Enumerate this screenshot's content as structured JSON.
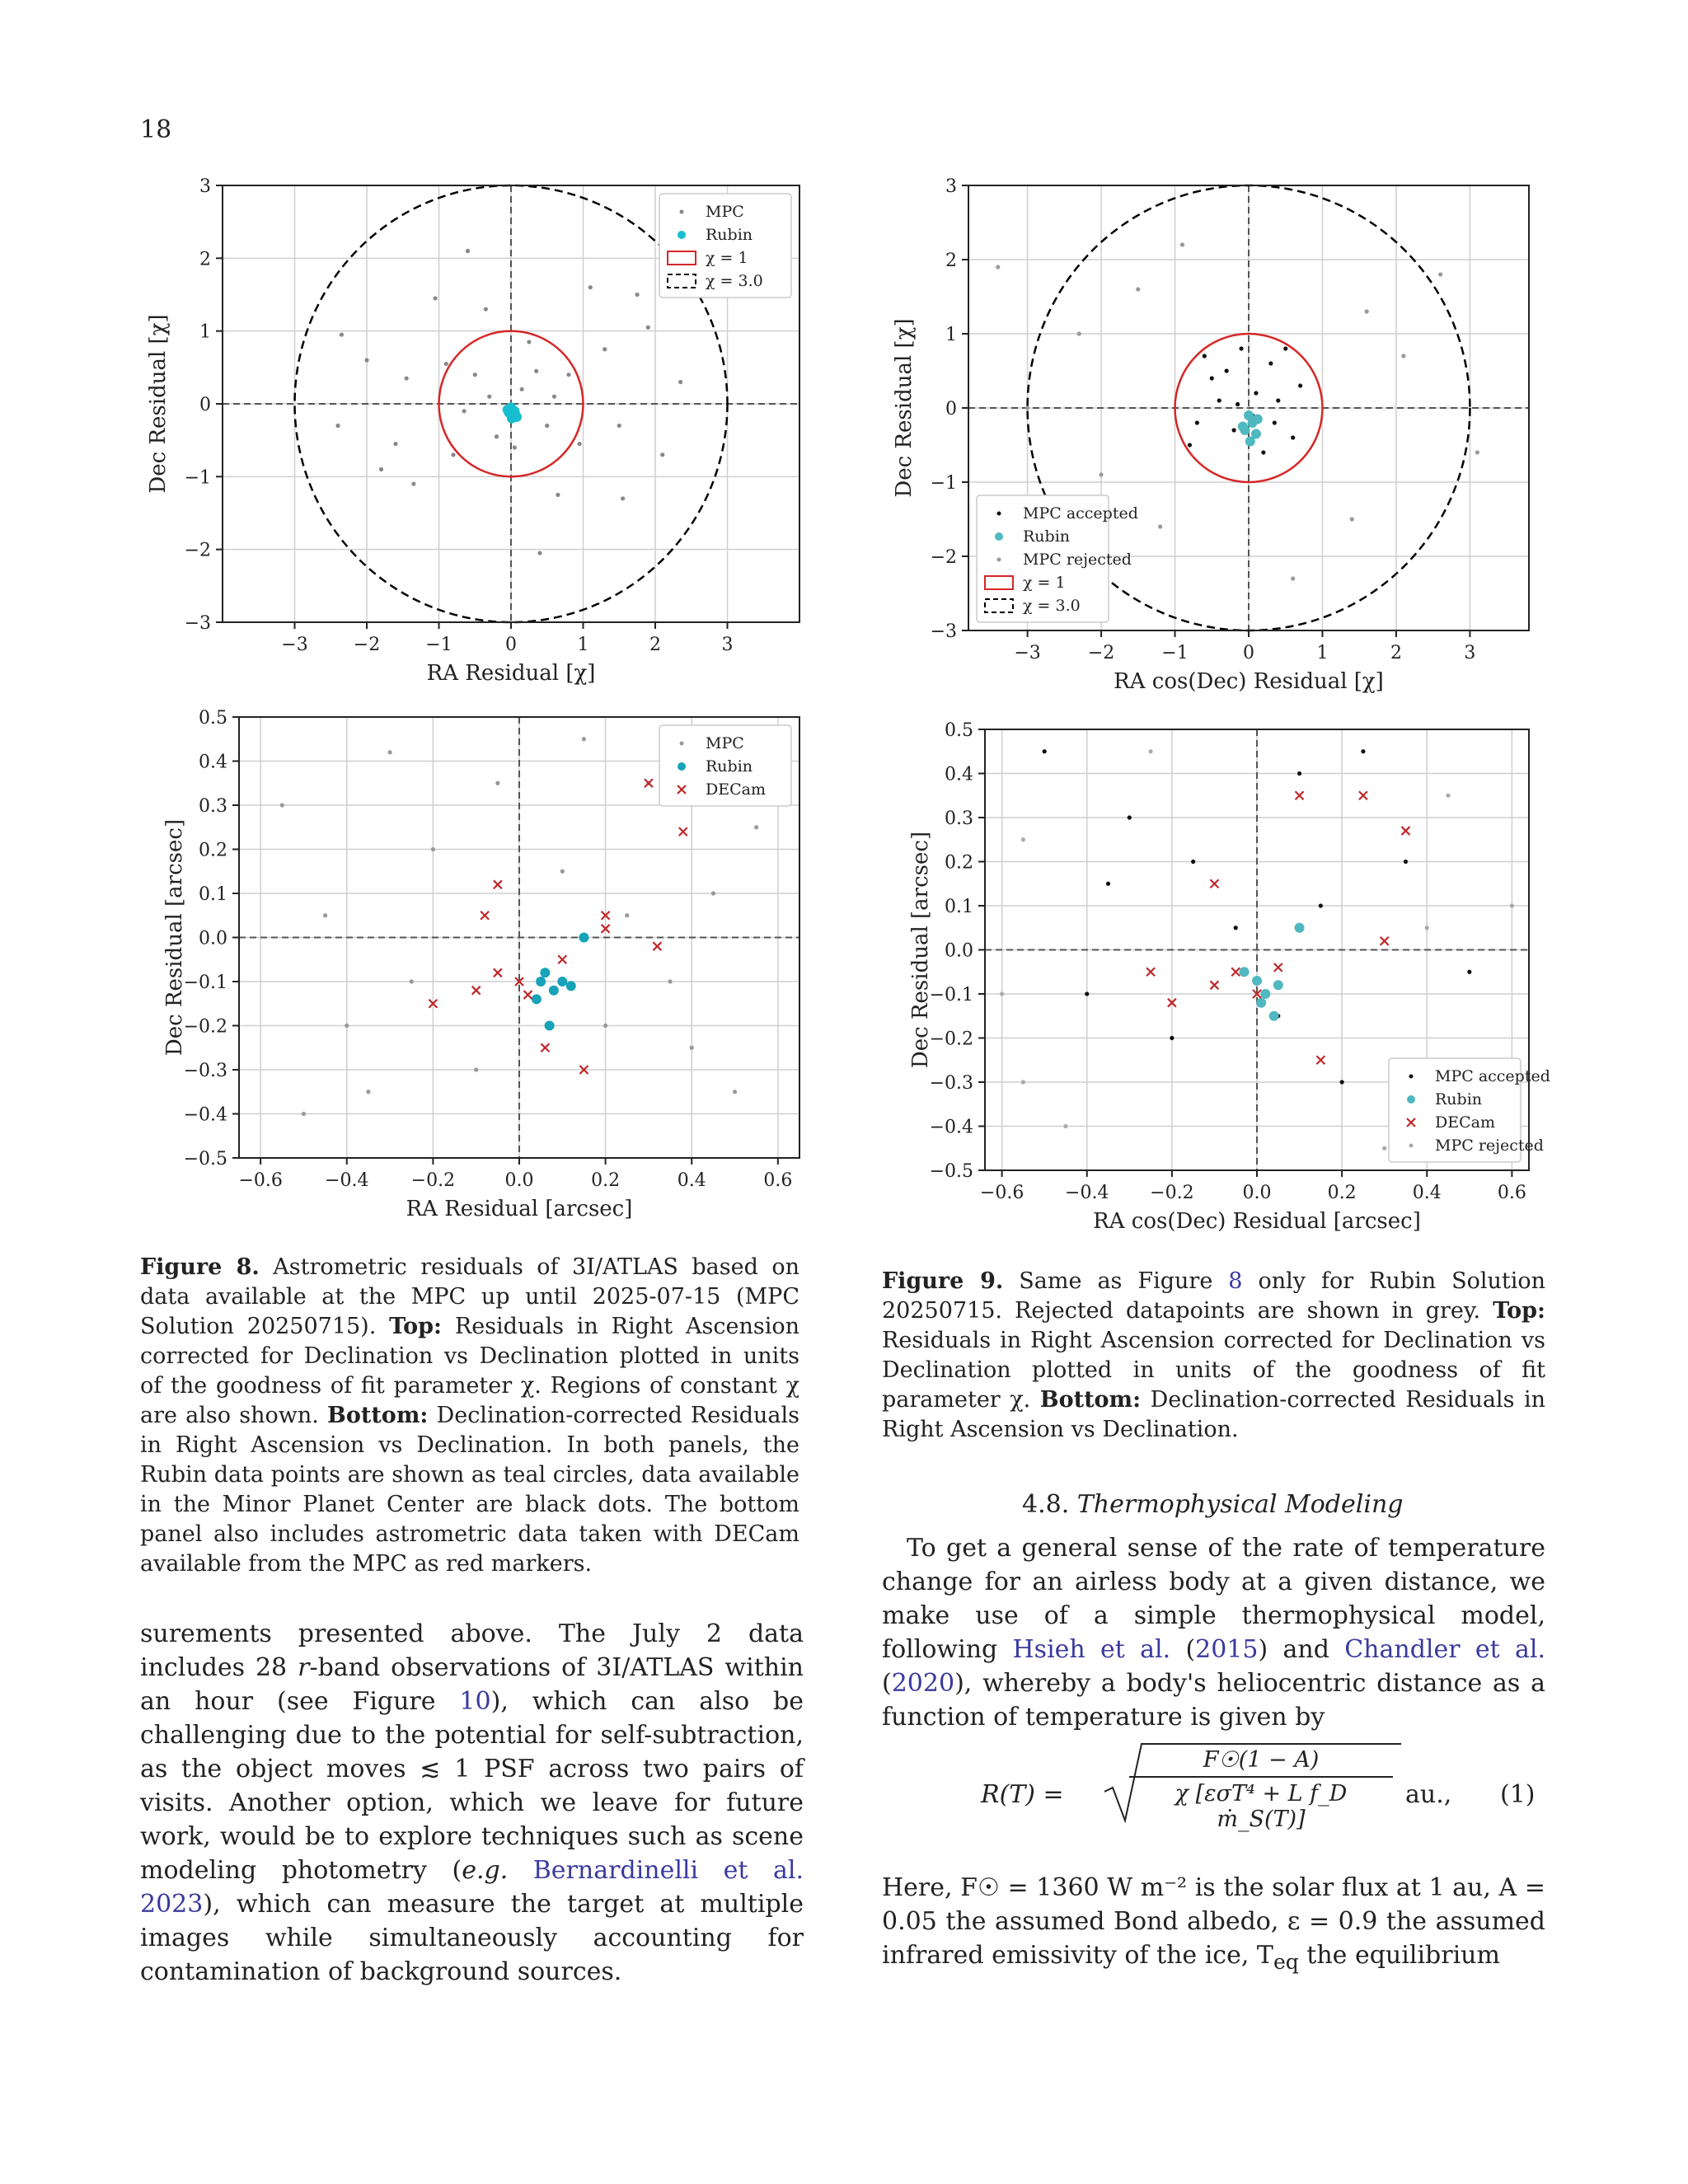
{
  "page_number": "18",
  "chart_data": [
    {
      "id": "fig8-top",
      "type": "scatter",
      "xlabel": "RA Residual [χ]",
      "ylabel": "Dec Residual [χ]",
      "xlim": [
        -4,
        4
      ],
      "ylim": [
        -3,
        3
      ],
      "xticks": [
        "−3",
        "−2",
        "−1",
        "0",
        "1",
        "2",
        "3"
      ],
      "yticks": [
        "−3",
        "−2",
        "−1",
        "0",
        "1",
        "2",
        "3"
      ],
      "xtick_values": [
        -3,
        -2,
        -1,
        0,
        1,
        2,
        3
      ],
      "ytick_values": [
        -3,
        -2,
        -1,
        0,
        1,
        2,
        3
      ],
      "grid": true,
      "legend_position": "top-right",
      "legend": [
        "MPC",
        "Rubin",
        "χ = 1",
        "χ = 3.0"
      ],
      "circles": [
        {
          "radius": 1,
          "color": "#d62728",
          "style": "solid"
        },
        {
          "radius": 3,
          "color": "#000000",
          "style": "dashed"
        }
      ],
      "series": [
        {
          "name": "MPC",
          "color": "#888888",
          "points": [
            [
              -2.35,
              0.95
            ],
            [
              -1.8,
              -0.9
            ],
            [
              -1.35,
              -1.1
            ],
            [
              1.9,
              1.05
            ],
            [
              1.55,
              -1.3
            ],
            [
              -0.6,
              2.1
            ],
            [
              0.4,
              -2.05
            ],
            [
              2.35,
              0.3
            ],
            [
              -2.4,
              -0.3
            ],
            [
              1.1,
              1.6
            ],
            [
              -1.05,
              1.45
            ],
            [
              -0.35,
              1.3
            ],
            [
              0.65,
              -1.25
            ],
            [
              1.3,
              0.75
            ],
            [
              -1.45,
              0.35
            ],
            [
              0.95,
              -0.55
            ],
            [
              -0.8,
              -0.7
            ],
            [
              0.25,
              0.85
            ],
            [
              -0.5,
              0.4
            ],
            [
              0.5,
              -0.3
            ],
            [
              -0.2,
              -0.45
            ],
            [
              0.15,
              0.2
            ],
            [
              -0.3,
              0.1
            ],
            [
              0.35,
              0.45
            ],
            [
              0.6,
              0.1
            ],
            [
              -0.65,
              -0.1
            ],
            [
              0.05,
              -0.6
            ],
            [
              0.8,
              0.4
            ],
            [
              -0.9,
              0.55
            ],
            [
              1.5,
              -0.3
            ],
            [
              -1.6,
              -0.55
            ],
            [
              2.1,
              -0.7
            ],
            [
              -2.0,
              0.6
            ],
            [
              1.75,
              1.5
            ]
          ]
        },
        {
          "name": "Rubin",
          "color": "#17becf",
          "points": [
            [
              0.0,
              -0.05
            ],
            [
              0.05,
              -0.1
            ],
            [
              -0.03,
              -0.12
            ],
            [
              0.06,
              -0.15
            ],
            [
              0.01,
              -0.2
            ],
            [
              -0.05,
              -0.08
            ],
            [
              0.08,
              -0.18
            ]
          ]
        }
      ]
    },
    {
      "id": "fig9-top",
      "type": "scatter",
      "xlabel": "RA cos(Dec) Residual [χ]",
      "ylabel": "Dec Residual [χ]",
      "xlim": [
        -3.8,
        3.8
      ],
      "ylim": [
        -3,
        3
      ],
      "xticks": [
        "−3",
        "−2",
        "−1",
        "0",
        "1",
        "2",
        "3"
      ],
      "yticks": [
        "−3",
        "−2",
        "−1",
        "0",
        "1",
        "2",
        "3"
      ],
      "xtick_values": [
        -3,
        -2,
        -1,
        0,
        1,
        2,
        3
      ],
      "ytick_values": [
        -3,
        -2,
        -1,
        0,
        1,
        2,
        3
      ],
      "grid": true,
      "legend_position": "bottom-left",
      "legend": [
        "MPC accepted",
        "Rubin",
        "MPC rejected",
        "χ = 1",
        "χ = 3.0"
      ],
      "circles": [
        {
          "radius": 1,
          "color": "#d62728",
          "style": "solid"
        },
        {
          "radius": 3,
          "color": "#000000",
          "style": "dashed"
        }
      ],
      "series": [
        {
          "name": "MPC accepted",
          "color": "#111111",
          "points": [
            [
              -0.5,
              0.4
            ],
            [
              0.3,
              0.6
            ],
            [
              -0.7,
              -0.2
            ],
            [
              0.6,
              -0.4
            ],
            [
              0.1,
              0.2
            ],
            [
              -0.2,
              -0.3
            ],
            [
              0.4,
              0.1
            ],
            [
              -0.4,
              0.1
            ],
            [
              0.2,
              -0.6
            ],
            [
              -0.1,
              0.8
            ],
            [
              0.7,
              0.3
            ],
            [
              -0.6,
              0.7
            ],
            [
              0.5,
              0.8
            ],
            [
              -0.8,
              -0.5
            ],
            [
              0.05,
              -0.1
            ],
            [
              -0.3,
              0.5
            ],
            [
              0.35,
              -0.2
            ],
            [
              -0.15,
              0.05
            ]
          ]
        },
        {
          "name": "Rubin",
          "color": "#4fb8c0",
          "points": [
            [
              0.0,
              -0.1
            ],
            [
              0.05,
              -0.2
            ],
            [
              -0.05,
              -0.3
            ],
            [
              0.1,
              -0.35
            ],
            [
              0.02,
              -0.45
            ],
            [
              -0.08,
              -0.25
            ],
            [
              0.12,
              -0.15
            ]
          ]
        },
        {
          "name": "MPC rejected",
          "color": "#999999",
          "points": [
            [
              -1.5,
              1.6
            ],
            [
              1.4,
              -1.5
            ],
            [
              -2.0,
              -0.9
            ],
            [
              2.1,
              0.7
            ],
            [
              -1.2,
              -1.6
            ],
            [
              1.6,
              1.3
            ],
            [
              -3.0,
              0.0
            ],
            [
              3.1,
              -0.6
            ],
            [
              -0.9,
              2.2
            ],
            [
              0.6,
              -2.3
            ],
            [
              -2.3,
              1.0
            ],
            [
              2.6,
              1.8
            ],
            [
              -3.4,
              1.9
            ]
          ]
        }
      ]
    },
    {
      "id": "fig8-bottom",
      "type": "scatter",
      "xlabel": "RA Residual [arcsec]",
      "ylabel": "Dec Residual [arcsec]",
      "xlim": [
        -0.65,
        0.65
      ],
      "ylim": [
        -0.5,
        0.5
      ],
      "xticks": [
        "−0.6",
        "−0.4",
        "−0.2",
        "0.0",
        "0.2",
        "0.4",
        "0.6"
      ],
      "yticks": [
        "−0.5",
        "−0.4",
        "−0.3",
        "−0.2",
        "−0.1",
        "0.0",
        "0.1",
        "0.2",
        "0.3",
        "0.4",
        "0.5"
      ],
      "xtick_values": [
        -0.6,
        -0.4,
        -0.2,
        0.0,
        0.2,
        0.4,
        0.6
      ],
      "ytick_values": [
        -0.5,
        -0.4,
        -0.3,
        -0.2,
        -0.1,
        0.0,
        0.1,
        0.2,
        0.3,
        0.4,
        0.5
      ],
      "grid": true,
      "legend_position": "top-right",
      "legend": [
        "MPC",
        "Rubin",
        "DECam"
      ],
      "series": [
        {
          "name": "MPC",
          "color": "#999999",
          "points": [
            [
              -0.55,
              0.3
            ],
            [
              -0.4,
              -0.2
            ],
            [
              -0.3,
              0.42
            ],
            [
              0.45,
              0.1
            ],
            [
              0.5,
              -0.35
            ],
            [
              -0.5,
              -0.4
            ],
            [
              0.3,
              0.35
            ],
            [
              -0.2,
              0.2
            ],
            [
              0.2,
              -0.2
            ],
            [
              0.1,
              0.15
            ],
            [
              -0.1,
              -0.3
            ],
            [
              0.35,
              -0.1
            ],
            [
              -0.45,
              0.05
            ],
            [
              0.55,
              0.25
            ],
            [
              -0.25,
              -0.1
            ],
            [
              0.15,
              0.45
            ],
            [
              -0.05,
              0.35
            ],
            [
              0.4,
              -0.25
            ],
            [
              -0.35,
              -0.35
            ],
            [
              0.25,
              0.05
            ]
          ]
        },
        {
          "name": "Rubin",
          "color": "#17a3b8",
          "points": [
            [
              0.05,
              -0.1
            ],
            [
              0.08,
              -0.12
            ],
            [
              0.06,
              -0.08
            ],
            [
              0.1,
              -0.1
            ],
            [
              0.04,
              -0.14
            ],
            [
              0.12,
              -0.11
            ],
            [
              0.15,
              0.0
            ],
            [
              0.07,
              -0.2
            ]
          ]
        },
        {
          "name": "DECam",
          "color": "#c0282a",
          "points": [
            [
              0.0,
              -0.1
            ],
            [
              -0.05,
              -0.08
            ],
            [
              0.02,
              -0.13
            ],
            [
              -0.1,
              -0.12
            ],
            [
              0.1,
              -0.05
            ],
            [
              -0.2,
              -0.15
            ],
            [
              0.2,
              0.05
            ],
            [
              0.3,
              0.35
            ],
            [
              0.38,
              0.24
            ],
            [
              -0.05,
              0.12
            ],
            [
              0.15,
              -0.3
            ],
            [
              0.2,
              0.02
            ],
            [
              0.32,
              -0.02
            ],
            [
              -0.08,
              0.05
            ],
            [
              0.06,
              -0.25
            ]
          ]
        }
      ]
    },
    {
      "id": "fig9-bottom",
      "type": "scatter",
      "xlabel": "RA cos(Dec) Residual [arcsec]",
      "ylabel": "Dec Residual [arcsec]",
      "xlim": [
        -0.64,
        0.64
      ],
      "ylim": [
        -0.5,
        0.5
      ],
      "xticks": [
        "−0.6",
        "−0.4",
        "−0.2",
        "0.0",
        "0.2",
        "0.4",
        "0.6"
      ],
      "yticks": [
        "−0.5",
        "−0.4",
        "−0.3",
        "−0.2",
        "−0.1",
        "0.0",
        "0.1",
        "0.2",
        "0.3",
        "0.4",
        "0.5"
      ],
      "xtick_values": [
        -0.6,
        -0.4,
        -0.2,
        0.0,
        0.2,
        0.4,
        0.6
      ],
      "ytick_values": [
        -0.5,
        -0.4,
        -0.3,
        -0.2,
        -0.1,
        0.0,
        0.1,
        0.2,
        0.3,
        0.4,
        0.5
      ],
      "grid": true,
      "legend_position": "bottom-right",
      "legend": [
        "MPC accepted",
        "Rubin",
        "DECam",
        "MPC rejected"
      ],
      "series": [
        {
          "name": "MPC accepted",
          "color": "#111111",
          "points": [
            [
              -0.5,
              0.45
            ],
            [
              -0.3,
              0.3
            ],
            [
              0.1,
              0.4
            ],
            [
              0.35,
              0.2
            ],
            [
              -0.2,
              -0.2
            ],
            [
              0.2,
              -0.3
            ],
            [
              -0.05,
              0.05
            ],
            [
              0.15,
              0.1
            ],
            [
              -0.4,
              -0.1
            ],
            [
              0.5,
              -0.05
            ],
            [
              -0.15,
              0.2
            ],
            [
              0.05,
              -0.15
            ],
            [
              0.25,
              0.45
            ],
            [
              -0.35,
              0.15
            ]
          ]
        },
        {
          "name": "Rubin",
          "color": "#4fb8c0",
          "points": [
            [
              0.0,
              -0.07
            ],
            [
              0.02,
              -0.1
            ],
            [
              -0.03,
              -0.05
            ],
            [
              0.05,
              -0.08
            ],
            [
              0.01,
              -0.12
            ],
            [
              0.1,
              0.05
            ],
            [
              0.04,
              -0.15
            ]
          ]
        },
        {
          "name": "DECam",
          "color": "#c0282a",
          "points": [
            [
              -0.05,
              -0.05
            ],
            [
              0.0,
              -0.1
            ],
            [
              -0.1,
              -0.08
            ],
            [
              0.05,
              -0.04
            ],
            [
              -0.2,
              -0.12
            ],
            [
              0.25,
              0.35
            ],
            [
              0.35,
              0.27
            ],
            [
              0.1,
              0.35
            ],
            [
              -0.1,
              0.15
            ],
            [
              0.15,
              -0.25
            ],
            [
              0.3,
              0.02
            ],
            [
              -0.25,
              -0.05
            ]
          ]
        },
        {
          "name": "MPC rejected",
          "color": "#aaaaaa",
          "points": [
            [
              -0.55,
              0.25
            ],
            [
              0.55,
              -0.4
            ],
            [
              -0.45,
              -0.4
            ],
            [
              0.45,
              0.35
            ],
            [
              -0.6,
              -0.1
            ],
            [
              0.6,
              0.1
            ],
            [
              -0.25,
              0.45
            ],
            [
              0.3,
              -0.45
            ],
            [
              -0.55,
              -0.3
            ],
            [
              0.4,
              0.05
            ]
          ]
        }
      ]
    }
  ],
  "fig8_caption": {
    "label": "Figure 8.",
    "t1": " Astrometric residuals of 3I/ATLAS based on data available at the MPC up until 2025-07-15 (MPC Solution 20250715). ",
    "top": "Top:",
    "t2": " Residuals in Right Ascension corrected for Declination vs Declination plotted in units of the goodness of fit parameter χ. Regions of constant χ are also shown. ",
    "bottom": "Bottom:",
    "t3": " Declination-corrected Residuals in Right Ascension vs Declination. In both panels, the Rubin data points are shown as teal circles, data available in the Minor Planet Center are black dots. The bottom panel also includes astrometric data taken with DECam available from the MPC as red markers."
  },
  "fig9_caption": {
    "label": "Figure 9.",
    "t1": " Same as Figure ",
    "ref": "8",
    "t2": " only for Rubin Solution 20250715. Rejected datapoints are shown in grey. ",
    "top": "Top:",
    "t3": " Residuals in Right Ascension corrected for Declination vs Declination plotted in units of the goodness of fit parameter χ. ",
    "bottom": "Bottom:",
    "t4": " Declination-corrected Residuals in Right Ascension vs Declination."
  },
  "left_para": {
    "t1": "surements presented above. The July 2 data includes 28 ",
    "r": "r",
    "t2": "-band observations of 3I/ATLAS within an hour (see Figure ",
    "ref": "10",
    "t3": "), which can also be challenging due to the potential for self-subtraction, as the object moves ≲ 1 PSF across two pairs of visits. Another option, which we leave for future work, would be to explore techniques such as scene modeling photometry (",
    "eg": "e.g.",
    "cite": " Bernardinelli et al. 2023",
    "t4": "), which can measure the target at multiple images while simultaneously accounting for contamination of background sources."
  },
  "section": {
    "number": "4.8.",
    "title": "Thermophysical Modeling"
  },
  "right_para": {
    "t1": "To get a general sense of the rate of temperature change for an airless body at a given distance, we make use of a simple thermophysical model, following ",
    "cite1": "Hsieh et al.",
    "t2": " (",
    "cite1y": "2015",
    "t3": ") and ",
    "cite2": "Chandler et al.",
    "t4": " (",
    "cite2y": "2020",
    "t5": "), whereby a body's heliocentric distance as a function of temperature is given by"
  },
  "equation": {
    "lhs": "R(T) =",
    "numerator": "F☉(1 − A)",
    "denominator": "χ [εσT⁴ + L f_D ṁ_S(T)]",
    "unit": "au.,",
    "number": "(1)"
  },
  "after_eq": {
    "t1": "Here, F☉ = 1360 W m⁻² is the solar flux at 1 au, A = 0.05 the assumed Bond albedo, ε = 0.9 the assumed infrared emissivity of the ice, T",
    "sub": "eq",
    "t2": " the equilibrium"
  }
}
